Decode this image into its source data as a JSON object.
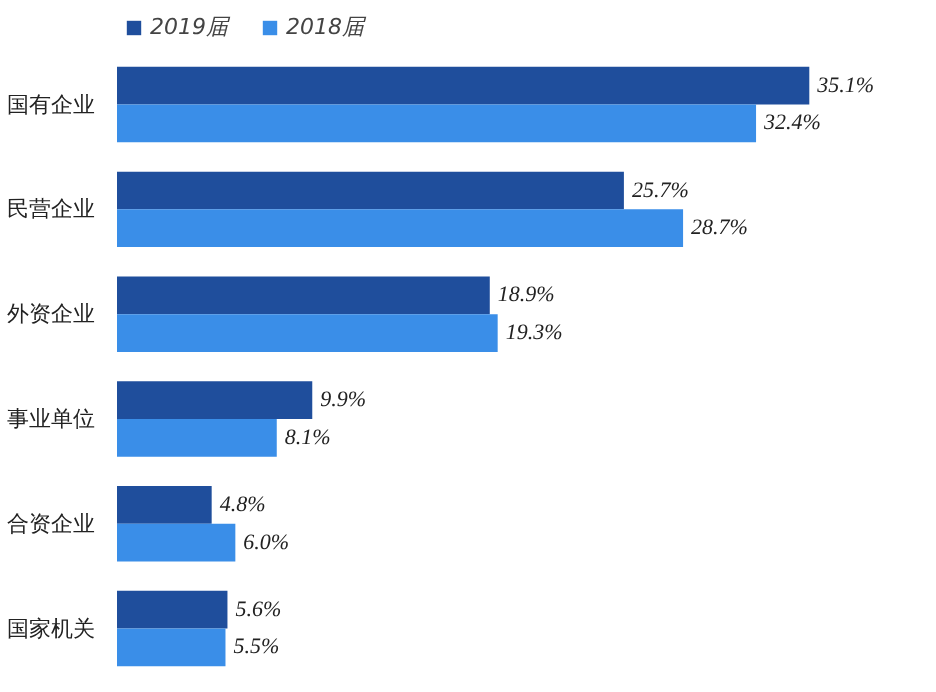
{
  "chart_data": {
    "type": "bar",
    "orientation": "horizontal",
    "categories": [
      "国有企业",
      "民营企业",
      "外资企业",
      "事业单位",
      "合资企业",
      "国家机关"
    ],
    "series": [
      {
        "name": "2019届",
        "color": "#1f4e9c",
        "values": [
          35.1,
          25.7,
          18.9,
          9.9,
          4.8,
          5.6
        ],
        "value_labels": [
          "35.1%",
          "25.7%",
          "18.9%",
          "9.9%",
          "4.8%",
          "5.6%"
        ]
      },
      {
        "name": "2018届",
        "color": "#3a8ee8",
        "values": [
          32.4,
          28.7,
          19.3,
          8.1,
          6.0,
          5.5
        ],
        "value_labels": [
          "32.4%",
          "28.7%",
          "19.3%",
          "8.1%",
          "6.0%",
          "5.5%"
        ]
      }
    ],
    "legend": "top left",
    "grid": false
  }
}
